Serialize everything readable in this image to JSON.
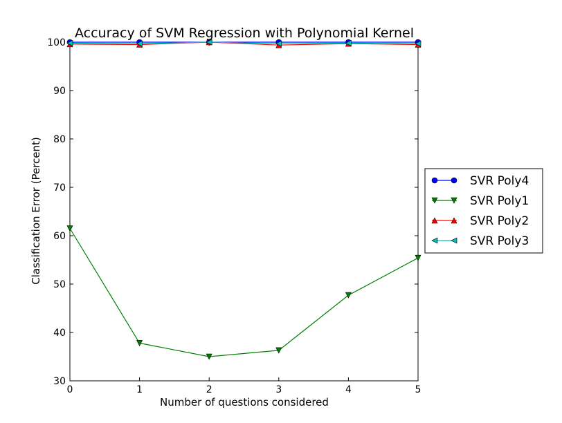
{
  "chart_data": {
    "type": "line",
    "title": "Accuracy of SVM Regression with Polynomial Kernel",
    "xlabel": "Number of questions considered",
    "ylabel": "Classification Error (Percent)",
    "xlim": [
      0,
      5
    ],
    "ylim": [
      30,
      100
    ],
    "x": [
      0,
      1,
      2,
      3,
      4,
      5
    ],
    "xticks": [
      "0",
      "1",
      "2",
      "3",
      "4",
      "5"
    ],
    "yticks": [
      "30",
      "40",
      "50",
      "60",
      "70",
      "80",
      "90",
      "100"
    ],
    "grid": false,
    "legend_position": "right, outside plot",
    "series": [
      {
        "name": "SVR Poly4",
        "color": "#0000ff",
        "marker": "circle",
        "values": [
          100.0,
          100.0,
          100.0,
          100.0,
          100.0,
          100.0
        ]
      },
      {
        "name": "SVR Poly1",
        "color": "#008000",
        "marker": "triangle-down",
        "values": [
          61.5,
          37.8,
          35.0,
          36.3,
          47.7,
          55.4
        ]
      },
      {
        "name": "SVR Poly2",
        "color": "#ff0000",
        "marker": "triangle-up",
        "values": [
          99.6,
          99.5,
          100.0,
          99.4,
          99.7,
          99.5
        ]
      },
      {
        "name": "SVR Poly3",
        "color": "#00bfbf",
        "marker": "triangle-left",
        "values": [
          99.8,
          99.7,
          100.0,
          99.7,
          99.8,
          99.7
        ]
      }
    ]
  }
}
